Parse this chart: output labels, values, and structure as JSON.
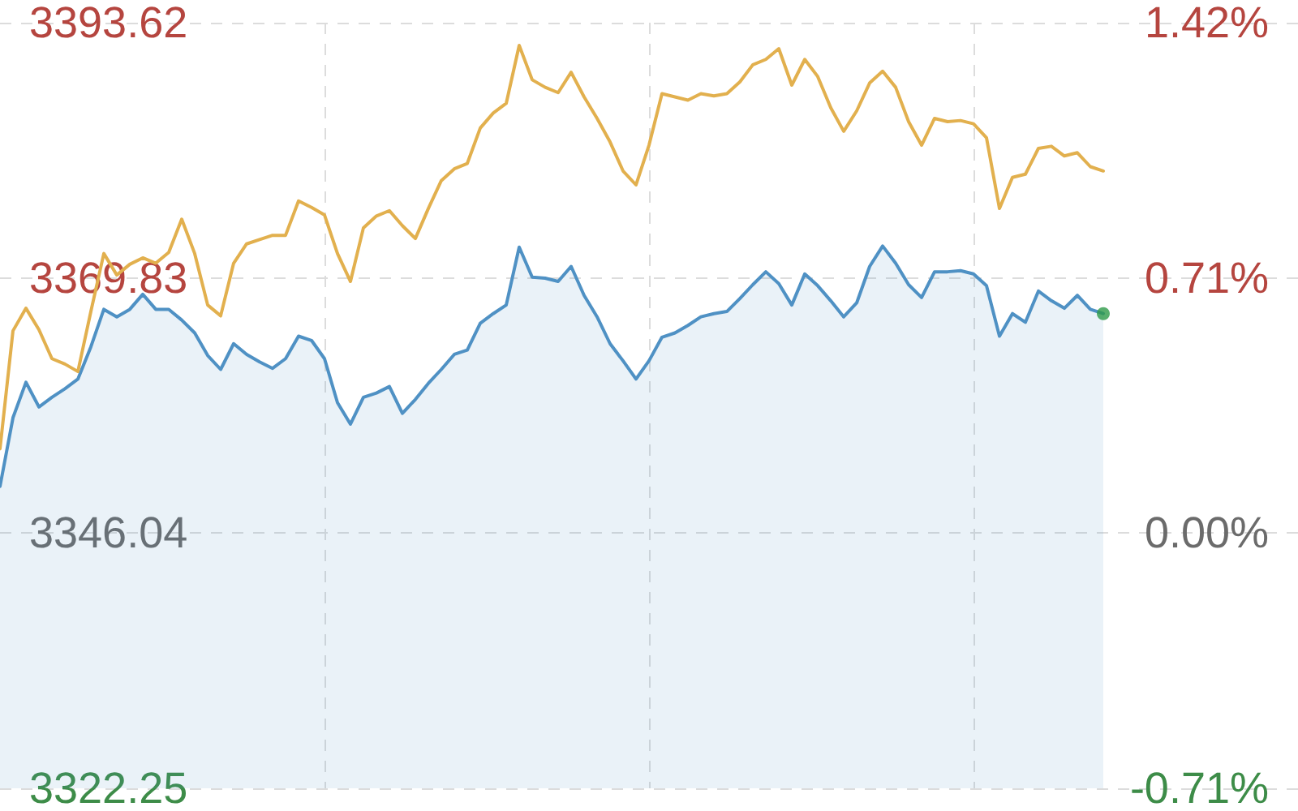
{
  "chart_data": {
    "type": "line",
    "categories": [
      null,
      null,
      null,
      null,
      null,
      null,
      null,
      null,
      null,
      null,
      null,
      null,
      null,
      null,
      null,
      null,
      null,
      null,
      null,
      null,
      null,
      null,
      null,
      null,
      null,
      null,
      null,
      null,
      null,
      null,
      null,
      null,
      null,
      null,
      null,
      null,
      null,
      null,
      null,
      null,
      null,
      null,
      null,
      null,
      null,
      null,
      null,
      null,
      null,
      null,
      null,
      null,
      null,
      null,
      null,
      null,
      null,
      null,
      null,
      null,
      null,
      null,
      null,
      null,
      null,
      null,
      null,
      null,
      null,
      null,
      null,
      null,
      null,
      null,
      null,
      null,
      null,
      null,
      null,
      null,
      null,
      null,
      null,
      null,
      null,
      null,
      null,
      null,
      null,
      null,
      null,
      null,
      null,
      null,
      null,
      null,
      null,
      null,
      null,
      null,
      null
    ],
    "ylim": [
      3322.25,
      3393.62
    ],
    "yticks": [
      3322.25,
      3346.04,
      3369.83,
      3393.62
    ],
    "y2lim": [
      -0.71,
      1.42
    ],
    "y2ticks": [
      {
        "value": -0.71,
        "label": "-0.71%"
      },
      {
        "value": 0,
        "label": "0.00%"
      },
      {
        "value": 0.71,
        "label": "0.71%"
      },
      {
        "value": 1.42,
        "label": "1.42%"
      }
    ],
    "tick_labels": "y",
    "grid": true,
    "series": [
      {
        "type": "area",
        "color": "#4f91c4",
        "values": [
          3350.4,
          3356.8,
          3360.1,
          3357.8,
          3358.7,
          3359.5,
          3360.4,
          3363.4,
          3366.9,
          3366.2,
          3366.9,
          3368.3,
          3366.9,
          3366.9,
          3365.9,
          3364.7,
          3362.6,
          3361.3,
          3363.7,
          3362.7,
          3362.0,
          3361.4,
          3362.3,
          3364.4,
          3364.0,
          3362.3,
          3358.2,
          3356.2,
          3358.7,
          3359.1,
          3359.7,
          3357.2,
          3358.5,
          3360.0,
          3361.3,
          3362.7,
          3363.1,
          3365.6,
          3366.5,
          3367.3,
          3372.7,
          3369.9,
          3369.8,
          3369.5,
          3370.9,
          3368.2,
          3366.2,
          3363.7,
          3362.1,
          3360.4,
          3362.1,
          3364.3,
          3364.7,
          3365.4,
          3366.2,
          3366.5,
          3366.7,
          3367.9,
          3369.2,
          3370.4,
          3369.3,
          3367.3,
          3370.2,
          3369.1,
          3367.7,
          3366.2,
          3367.5,
          3370.9,
          3372.8,
          3371.2,
          3369.2,
          3368.0,
          3370.4,
          3370.4,
          3370.5,
          3370.2,
          3369.1,
          3364.4,
          3366.5,
          3365.7,
          3368.6,
          3367.7,
          3367.0,
          3368.2,
          3366.9,
          3366.5,
          null,
          null,
          null,
          null,
          null,
          null,
          null,
          null,
          null,
          null,
          null,
          null,
          null,
          null,
          null
        ]
      },
      {
        "color": "#e2b04e",
        "values": [
          3353.9,
          3364.9,
          3367.0,
          3365.0,
          3362.3,
          3361.8,
          3361.1,
          3366.7,
          3372.1,
          3370.1,
          3371.1,
          3371.7,
          3371.2,
          3372.2,
          3375.3,
          3372.1,
          3367.3,
          3366.3,
          3371.2,
          3373.0,
          3373.4,
          3373.8,
          3373.8,
          3377.0,
          3376.4,
          3375.7,
          3372.1,
          3369.5,
          3374.5,
          3375.6,
          3376.1,
          3374.7,
          3373.5,
          3376.3,
          3378.9,
          3380.0,
          3380.5,
          3383.8,
          3385.2,
          3386.1,
          3391.5,
          3388.3,
          3387.6,
          3387.1,
          3389.0,
          3386.7,
          3384.7,
          3382.5,
          3379.8,
          3378.5,
          3382.2,
          3387.0,
          3386.7,
          3386.4,
          3387.0,
          3386.8,
          3387.0,
          3388.1,
          3389.7,
          3390.2,
          3391.2,
          3387.8,
          3390.2,
          3388.6,
          3385.7,
          3383.5,
          3385.4,
          3388.0,
          3389.1,
          3387.6,
          3384.4,
          3382.2,
          3384.7,
          3384.4,
          3384.5,
          3384.2,
          3382.9,
          3376.3,
          3379.2,
          3379.5,
          3381.9,
          3382.1,
          3381.2,
          3381.5,
          3380.2,
          3379.8,
          null,
          null,
          null,
          null,
          null,
          null,
          null,
          null,
          null,
          null,
          null,
          null,
          null,
          null,
          null
        ]
      },
      {
        "type": "scatter",
        "color": "#2e9a48",
        "marker": "circle",
        "values": [
          null,
          null,
          null,
          null,
          null,
          null,
          null,
          null,
          null,
          null,
          null,
          null,
          null,
          null,
          null,
          null,
          null,
          null,
          null,
          null,
          null,
          null,
          null,
          null,
          null,
          null,
          null,
          null,
          null,
          null,
          null,
          null,
          null,
          null,
          null,
          null,
          null,
          null,
          null,
          null,
          null,
          null,
          null,
          null,
          null,
          null,
          null,
          null,
          null,
          null,
          null,
          null,
          null,
          null,
          null,
          null,
          null,
          null,
          null,
          null,
          null,
          null,
          null,
          null,
          null,
          null,
          null,
          null,
          null,
          null,
          null,
          null,
          null,
          null,
          null,
          null,
          null,
          null,
          null,
          null,
          null,
          null,
          null,
          null,
          null,
          3366.5,
          null,
          null,
          null,
          null,
          null,
          null,
          null,
          null,
          null,
          null,
          null,
          null,
          null,
          null,
          null
        ]
      }
    ]
  }
}
